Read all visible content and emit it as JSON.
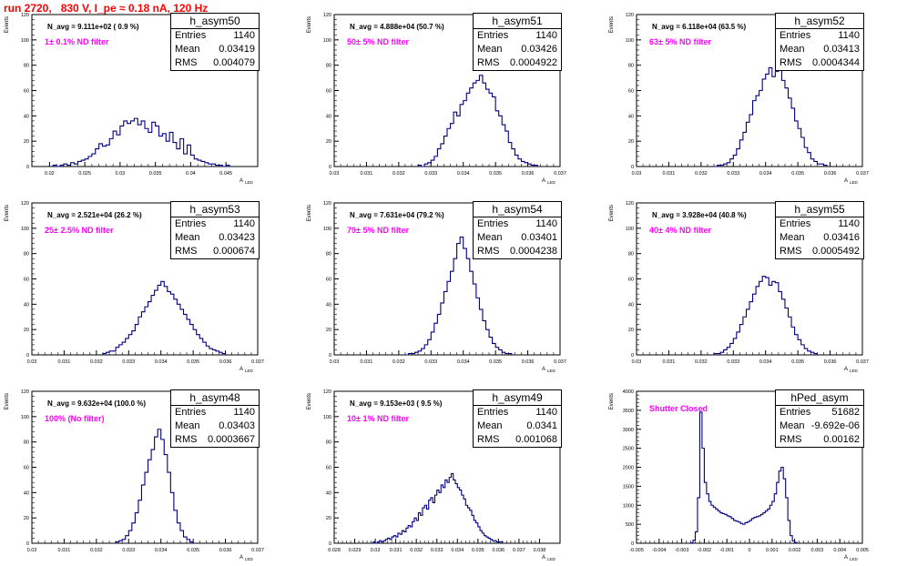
{
  "page_title": "run 2720,   830 V, I_pe ≈ 0.18 nA, 120 Hz",
  "colors": {
    "title": "#ff0000",
    "annotation": "#ff00ff",
    "histogram": "#000080"
  },
  "chart_data": [
    {
      "type": "histogram",
      "name": "h_asym50",
      "entries": "1140",
      "mean": "0.03419",
      "rms": "0.004079",
      "navg": "N_avg = 9.111e+02 ( 0.9 %)",
      "filter": "1± 0.1% ND filter",
      "xlabel": "A",
      "xlabel_sub": "LED",
      "ylabel": "Events",
      "xlim": [
        0.0175,
        0.0495
      ],
      "ylim": [
        0,
        120
      ],
      "xticks": [
        0.02,
        0.025,
        0.03,
        0.035,
        0.04,
        0.045
      ],
      "xtick_labels": [
        "0.02",
        "0.025",
        "0.03",
        "0.035",
        "0.04",
        "0.045"
      ],
      "yticks": [
        0,
        20,
        40,
        60,
        80,
        100,
        120
      ],
      "bin_edges_start": 0.0205,
      "bin_width": 0.0005,
      "values": [
        1,
        0,
        1,
        2,
        1,
        3,
        2,
        4,
        5,
        6,
        8,
        10,
        14,
        18,
        16,
        17,
        22,
        28,
        25,
        32,
        36,
        34,
        36,
        38,
        33,
        36,
        30,
        27,
        35,
        32,
        24,
        26,
        20,
        27,
        19,
        14,
        22,
        10,
        17,
        9,
        6,
        5,
        4,
        3,
        2,
        2,
        1,
        1,
        0,
        1
      ]
    },
    {
      "type": "histogram",
      "name": "h_asym51",
      "entries": "1140",
      "mean": "0.03426",
      "rms": "0.0004922",
      "navg": "N_avg = 4.888e+04 (50.7 %)",
      "filter": "50± 5% ND filter",
      "xlabel": "A",
      "xlabel_sub": "LED",
      "ylabel": "Events",
      "xlim": [
        0.03,
        0.037
      ],
      "ylim": [
        0,
        120
      ],
      "xticks": [
        0.03,
        0.031,
        0.032,
        0.033,
        0.034,
        0.035,
        0.036,
        0.037
      ],
      "xtick_labels": [
        "0.03",
        "0.031",
        "0.032",
        "0.033",
        "0.034",
        "0.035",
        "0.036",
        "0.037"
      ],
      "yticks": [
        0,
        20,
        40,
        60,
        80,
        100,
        120
      ],
      "bin_edges_start": 0.0326,
      "bin_width": 0.0001,
      "values": [
        1,
        0,
        2,
        3,
        5,
        8,
        14,
        18,
        24,
        30,
        34,
        43,
        40,
        49,
        52,
        58,
        62,
        66,
        68,
        72,
        66,
        61,
        58,
        55,
        44,
        40,
        33,
        28,
        19,
        14,
        9,
        6,
        4,
        3,
        2,
        1,
        1
      ]
    },
    {
      "type": "histogram",
      "name": "h_asym52",
      "entries": "1140",
      "mean": "0.03413",
      "rms": "0.0004344",
      "navg": "N_avg = 6.118e+04 (63.5 %)",
      "filter": "63± 5% ND filter",
      "xlabel": "A",
      "xlabel_sub": "LED",
      "ylabel": "Events",
      "xlim": [
        0.03,
        0.037
      ],
      "ylim": [
        0,
        120
      ],
      "xticks": [
        0.03,
        0.031,
        0.032,
        0.033,
        0.034,
        0.035,
        0.036,
        0.037
      ],
      "xtick_labels": [
        "0.03",
        "0.031",
        "0.032",
        "0.033",
        "0.034",
        "0.035",
        "0.036",
        "0.037"
      ],
      "yticks": [
        0,
        20,
        40,
        60,
        80,
        100,
        120
      ],
      "bin_edges_start": 0.0324,
      "bin_width": 0.0001,
      "values": [
        0,
        1,
        1,
        2,
        3,
        6,
        9,
        14,
        21,
        27,
        35,
        41,
        52,
        56,
        60,
        69,
        73,
        78,
        71,
        75,
        76,
        68,
        62,
        54,
        46,
        36,
        30,
        23,
        15,
        11,
        6,
        4,
        2,
        2,
        1
      ]
    },
    {
      "type": "histogram",
      "name": "h_asym53",
      "entries": "1140",
      "mean": "0.03423",
      "rms": "0.000674",
      "navg": "N_avg = 2.521e+04 (26.2 %)",
      "filter": "25± 2.5% ND filter",
      "xlabel": "A",
      "xlabel_sub": "LED",
      "ylabel": "Events",
      "xlim": [
        0.03,
        0.037
      ],
      "ylim": [
        0,
        120
      ],
      "xticks": [
        0.03,
        0.031,
        0.032,
        0.033,
        0.034,
        0.035,
        0.036,
        0.037
      ],
      "xtick_labels": [
        "0.03",
        "0.031",
        "0.032",
        "0.033",
        "0.034",
        "0.035",
        "0.036",
        "0.037"
      ],
      "yticks": [
        0,
        20,
        40,
        60,
        80,
        100,
        120
      ],
      "bin_edges_start": 0.0322,
      "bin_width": 0.0001,
      "values": [
        1,
        2,
        3,
        3,
        6,
        8,
        10,
        13,
        16,
        19,
        24,
        30,
        34,
        38,
        42,
        47,
        51,
        55,
        58,
        54,
        50,
        48,
        44,
        40,
        36,
        32,
        28,
        24,
        20,
        16,
        13,
        10,
        7,
        5,
        4,
        3,
        2,
        1
      ]
    },
    {
      "type": "histogram",
      "name": "h_asym54",
      "entries": "1140",
      "mean": "0.03401",
      "rms": "0.0004238",
      "navg": "N_avg = 7.631e+04 (79.2 %)",
      "filter": "79± 5% ND filter",
      "xlabel": "A",
      "xlabel_sub": "LED",
      "ylabel": "Events",
      "xlim": [
        0.03,
        0.037
      ],
      "ylim": [
        0,
        120
      ],
      "xticks": [
        0.03,
        0.031,
        0.032,
        0.033,
        0.034,
        0.035,
        0.036,
        0.037
      ],
      "xtick_labels": [
        "0.03",
        "0.031",
        "0.032",
        "0.033",
        "0.034",
        "0.035",
        "0.036",
        "0.037"
      ],
      "yticks": [
        0,
        20,
        40,
        60,
        80,
        100,
        120
      ],
      "bin_edges_start": 0.0322,
      "bin_width": 0.0001,
      "values": [
        0,
        1,
        1,
        2,
        3,
        5,
        8,
        12,
        18,
        25,
        32,
        41,
        50,
        58,
        66,
        76,
        88,
        93,
        84,
        76,
        66,
        56,
        45,
        36,
        27,
        20,
        14,
        9,
        6,
        4,
        2,
        1,
        1
      ]
    },
    {
      "type": "histogram",
      "name": "h_asym55",
      "entries": "1140",
      "mean": "0.03416",
      "rms": "0.0005492",
      "navg": "N_avg = 3.928e+04 (40.8 %)",
      "filter": "40± 4% ND filter",
      "xlabel": "A",
      "xlabel_sub": "LED",
      "ylabel": "Events",
      "xlim": [
        0.03,
        0.037
      ],
      "ylim": [
        0,
        120
      ],
      "xticks": [
        0.03,
        0.031,
        0.032,
        0.033,
        0.034,
        0.035,
        0.036,
        0.037
      ],
      "xtick_labels": [
        "0.03",
        "0.031",
        "0.032",
        "0.033",
        "0.034",
        "0.035",
        "0.036",
        "0.037"
      ],
      "yticks": [
        0,
        20,
        40,
        60,
        80,
        100,
        120
      ],
      "bin_edges_start": 0.0324,
      "bin_width": 0.0001,
      "values": [
        1,
        1,
        2,
        4,
        6,
        9,
        13,
        18,
        24,
        30,
        36,
        42,
        48,
        54,
        58,
        62,
        61,
        55,
        58,
        57,
        50,
        44,
        37,
        30,
        22,
        16,
        12,
        8,
        5,
        3,
        2,
        1
      ]
    },
    {
      "type": "histogram",
      "name": "h_asym48",
      "entries": "1140",
      "mean": "0.03403",
      "rms": "0.0003667",
      "navg": "N_avg = 9.632e+04 (100.0 %)",
      "filter": "100% (No filter)",
      "xlabel": "A",
      "xlabel_sub": "LED",
      "ylabel": "Events",
      "xlim": [
        0.03,
        0.037
      ],
      "ylim": [
        0,
        120
      ],
      "xticks": [
        0.03,
        0.031,
        0.032,
        0.033,
        0.034,
        0.035,
        0.036,
        0.037
      ],
      "xtick_labels": [
        "0.03",
        "0.031",
        "0.032",
        "0.033",
        "0.034",
        "0.035",
        "0.036",
        "0.037"
      ],
      "yticks": [
        0,
        20,
        40,
        60,
        80,
        100,
        120
      ],
      "bin_edges_start": 0.0326,
      "bin_width": 0.0001,
      "values": [
        1,
        2,
        3,
        6,
        10,
        16,
        24,
        34,
        46,
        56,
        66,
        74,
        84,
        90,
        82,
        70,
        56,
        40,
        26,
        16,
        10,
        5,
        3,
        1
      ]
    },
    {
      "type": "histogram",
      "name": "h_asym49",
      "entries": "1140",
      "mean": "0.0341",
      "rms": "0.001068",
      "navg": "N_avg = 9.153e+03 ( 9.5 %)",
      "filter": "10± 1% ND filter",
      "xlabel": "A",
      "xlabel_sub": "LED",
      "ylabel": "Events",
      "xlim": [
        0.028,
        0.039
      ],
      "ylim": [
        0,
        120
      ],
      "xticks": [
        0.028,
        0.029,
        0.03,
        0.031,
        0.032,
        0.033,
        0.034,
        0.035,
        0.036,
        0.037,
        0.038
      ],
      "xtick_labels": [
        "0.028",
        "0.029",
        "0.03",
        "0.031",
        "0.032",
        "0.033",
        "0.034",
        "0.035",
        "0.036",
        "0.037",
        "0.038"
      ],
      "yticks": [
        0,
        20,
        40,
        60,
        80,
        100,
        120
      ],
      "bin_edges_start": 0.0299,
      "bin_width": 0.0001,
      "values": [
        1,
        0,
        1,
        2,
        1,
        2,
        3,
        4,
        3,
        5,
        6,
        5,
        8,
        7,
        10,
        9,
        12,
        14,
        13,
        17,
        20,
        18,
        24,
        22,
        28,
        30,
        27,
        34,
        36,
        32,
        38,
        42,
        40,
        46,
        44,
        50,
        48,
        52,
        55,
        50,
        47,
        44,
        42,
        38,
        35,
        30,
        28,
        26,
        22,
        18,
        16,
        13,
        10,
        8,
        6,
        5,
        4,
        3,
        2,
        2,
        1,
        1,
        1
      ]
    },
    {
      "type": "histogram",
      "name": "hPed_asym",
      "entries": "51682",
      "mean": "-9.692e-06",
      "rms": "0.00162",
      "navg": "",
      "filter": "Shutter Closed",
      "xlabel": "A",
      "xlabel_sub": "LED",
      "ylabel": "Events",
      "xlim": [
        -0.005,
        0.005
      ],
      "ylim": [
        0,
        4000
      ],
      "xticks": [
        -0.005,
        -0.004,
        -0.003,
        -0.002,
        -0.001,
        0,
        0.001,
        0.002,
        0.003,
        0.004,
        0.005
      ],
      "xtick_labels": [
        "-0.005",
        "-0.004",
        "-0.003",
        "-0.002",
        "-0.001",
        "0",
        "0.001",
        "0.002",
        "0.003",
        "0.004",
        "0.005"
      ],
      "yticks": [
        0,
        500,
        1000,
        1500,
        2000,
        2500,
        3000,
        3500,
        4000
      ],
      "bin_edges_start": -0.0026,
      "bin_width": 0.0001,
      "values": [
        10,
        80,
        300,
        1200,
        3450,
        2500,
        1600,
        1300,
        1100,
        1000,
        950,
        900,
        850,
        800,
        780,
        760,
        720,
        700,
        650,
        600,
        580,
        560,
        520,
        500,
        540,
        560,
        600,
        650,
        680,
        700,
        720,
        760,
        800,
        850,
        900,
        1000,
        1100,
        1300,
        1600,
        1900,
        2000,
        1700,
        1200,
        600,
        200,
        60,
        20
      ]
    }
  ]
}
